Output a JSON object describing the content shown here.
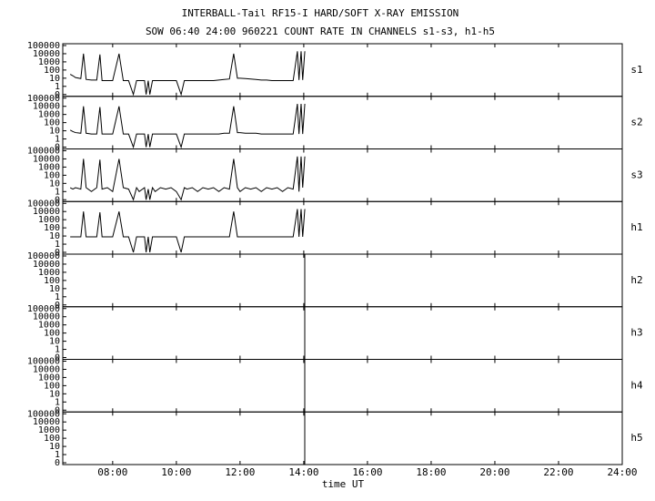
{
  "header": {
    "title": "INTERBALL-Tail RF15-I HARD/SOFT X-RAY EMISSION",
    "subtitle": "SOW 06:40 24:00 960221  COUNT RATE IN CHANNELS s1-s3, h1-h5"
  },
  "x_axis": {
    "xlim": [
      386,
      1440
    ],
    "xticks": [
      {
        "value": 480,
        "label": "08:00"
      },
      {
        "value": 600,
        "label": "10:00"
      },
      {
        "value": 720,
        "label": "12:00"
      },
      {
        "value": 840,
        "label": "14:00"
      },
      {
        "value": 960,
        "label": "16:00"
      },
      {
        "value": 1080,
        "label": "18:00"
      },
      {
        "value": 1200,
        "label": "20:00"
      },
      {
        "value": 1320,
        "label": "22:00"
      },
      {
        "value": 1440,
        "label": "24:00"
      }
    ],
    "xlabel": "time UT"
  },
  "chart_data": [
    {
      "type": "line",
      "label": "s1",
      "log_y": true,
      "ylim": [
        0.1,
        100000
      ],
      "yticks": [
        {
          "value": 0.1,
          "label": "0"
        },
        1,
        10,
        100,
        1000,
        10000,
        100000
      ],
      "color": "#000000",
      "x": [
        400,
        405,
        410,
        420,
        425,
        430,
        440,
        450,
        456,
        460,
        470,
        480,
        492,
        500,
        510,
        519,
        525,
        530,
        540,
        543,
        547,
        550,
        555,
        560,
        570,
        580,
        590,
        600,
        609,
        615,
        620,
        630,
        640,
        650,
        660,
        670,
        680,
        690,
        700,
        708,
        715,
        720,
        730,
        740,
        750,
        760,
        770,
        780,
        790,
        800,
        810,
        820,
        828,
        831,
        835,
        838,
        842
      ],
      "values": [
        30,
        20,
        12,
        9,
        10000,
        7,
        6,
        6,
        8000,
        5,
        5,
        5,
        10000,
        5,
        5,
        0.1,
        5,
        5,
        5,
        0.1,
        5,
        0.1,
        5,
        5,
        5,
        5,
        5,
        5,
        0.1,
        5,
        5,
        5,
        5,
        5,
        5,
        5,
        6,
        7,
        8,
        10000,
        10,
        10,
        9,
        8,
        7,
        6,
        6,
        5,
        5,
        5,
        5,
        5,
        20000,
        6,
        20000,
        6,
        20000
      ]
    },
    {
      "type": "line",
      "label": "s2",
      "log_y": true,
      "ylim": [
        0.1,
        100000
      ],
      "yticks": [
        {
          "value": 0.1,
          "label": "0"
        },
        1,
        10,
        100,
        1000,
        10000,
        100000
      ],
      "color": "#000000",
      "x": [
        400,
        405,
        410,
        420,
        425,
        430,
        440,
        450,
        456,
        460,
        470,
        480,
        492,
        500,
        510,
        519,
        525,
        530,
        540,
        543,
        547,
        550,
        555,
        560,
        570,
        580,
        590,
        600,
        609,
        615,
        620,
        630,
        640,
        650,
        660,
        670,
        680,
        690,
        700,
        708,
        715,
        720,
        730,
        740,
        750,
        760,
        770,
        780,
        790,
        800,
        810,
        820,
        828,
        831,
        835,
        838,
        842
      ],
      "values": [
        12,
        8,
        6,
        5,
        10000,
        5,
        4,
        4,
        8000,
        4,
        4,
        4,
        10000,
        4,
        4,
        0.1,
        4,
        4,
        4,
        0.1,
        4,
        0.1,
        4,
        4,
        4,
        4,
        4,
        4,
        0.1,
        4,
        4,
        4,
        4,
        4,
        4,
        4,
        4,
        5,
        5,
        10000,
        6,
        6,
        5,
        5,
        5,
        4,
        4,
        4,
        4,
        4,
        4,
        4,
        20000,
        4,
        20000,
        4,
        20000
      ]
    },
    {
      "type": "line",
      "label": "s3",
      "log_y": true,
      "ylim": [
        0.1,
        100000
      ],
      "yticks": [
        {
          "value": 0.1,
          "label": "0"
        },
        1,
        10,
        100,
        1000,
        10000,
        100000
      ],
      "color": "#000000",
      "x": [
        400,
        405,
        410,
        420,
        425,
        430,
        440,
        450,
        456,
        460,
        470,
        480,
        492,
        500,
        510,
        519,
        525,
        530,
        540,
        543,
        547,
        550,
        555,
        560,
        570,
        580,
        590,
        600,
        609,
        615,
        620,
        630,
        640,
        650,
        660,
        670,
        680,
        690,
        700,
        708,
        715,
        720,
        730,
        740,
        750,
        760,
        770,
        780,
        790,
        800,
        810,
        820,
        828,
        831,
        835,
        838,
        842
      ],
      "values": [
        3,
        2,
        3,
        2,
        10000,
        3,
        1,
        3,
        8000,
        2,
        3,
        1,
        10000,
        3,
        2,
        0.1,
        3,
        1,
        3,
        0.1,
        2,
        0.1,
        3,
        1,
        3,
        2,
        3,
        1,
        0.1,
        3,
        2,
        3,
        1,
        3,
        2,
        3,
        1,
        3,
        2,
        10000,
        3,
        1,
        3,
        2,
        3,
        1,
        3,
        2,
        3,
        1,
        3,
        2,
        20000,
        1,
        20000,
        3,
        20000
      ]
    },
    {
      "type": "line",
      "label": "h1",
      "log_y": true,
      "ylim": [
        0.1,
        100000
      ],
      "yticks": [
        {
          "value": 0.1,
          "label": "0"
        },
        1,
        10,
        100,
        1000,
        10000,
        100000
      ],
      "color": "#000000",
      "x": [
        400,
        405,
        410,
        420,
        425,
        430,
        440,
        450,
        456,
        460,
        470,
        480,
        492,
        500,
        510,
        519,
        525,
        530,
        540,
        543,
        547,
        550,
        555,
        560,
        570,
        580,
        590,
        600,
        609,
        615,
        620,
        630,
        640,
        650,
        660,
        670,
        680,
        690,
        700,
        708,
        715,
        720,
        730,
        740,
        750,
        760,
        770,
        780,
        790,
        800,
        810,
        820,
        828,
        831,
        835,
        838,
        842
      ],
      "values": [
        8,
        8,
        8,
        8,
        10000,
        8,
        8,
        8,
        8000,
        8,
        8,
        8,
        10000,
        8,
        8,
        0.1,
        8,
        8,
        8,
        0.1,
        8,
        0.1,
        8,
        8,
        8,
        8,
        8,
        8,
        0.1,
        8,
        8,
        8,
        8,
        8,
        8,
        8,
        8,
        8,
        8,
        10000,
        8,
        8,
        8,
        8,
        8,
        8,
        8,
        8,
        8,
        8,
        8,
        8,
        20000,
        8,
        20000,
        8,
        20000
      ]
    },
    {
      "type": "line",
      "label": "h2",
      "log_y": true,
      "ylim": [
        0.1,
        100000
      ],
      "yticks": [
        {
          "value": 0.1,
          "label": "0"
        },
        1,
        10,
        100,
        1000,
        10000,
        100000
      ]
    },
    {
      "type": "line",
      "label": "h3",
      "log_y": true,
      "ylim": [
        0.1,
        100000
      ],
      "yticks": [
        {
          "value": 0.1,
          "label": "0"
        },
        1,
        10,
        100,
        1000,
        10000,
        100000
      ]
    },
    {
      "type": "line",
      "label": "h4",
      "log_y": true,
      "ylim": [
        0.1,
        100000
      ],
      "yticks": [
        {
          "value": 0.1,
          "label": "0"
        },
        1,
        10,
        100,
        1000,
        10000,
        100000
      ]
    },
    {
      "type": "line",
      "label": "h5",
      "log_y": true,
      "ylim": [
        0.1,
        100000
      ],
      "yticks": [
        {
          "value": 0.1,
          "label": "0"
        },
        1,
        10,
        100,
        1000,
        10000,
        100000
      ]
    }
  ]
}
